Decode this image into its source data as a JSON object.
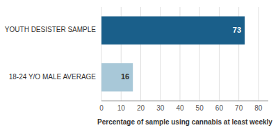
{
  "chart_data": {
    "type": "bar",
    "orientation": "horizontal",
    "categories": [
      "18-24 Y/O MALE AVERAGE",
      "YOUTH DESISTER SAMPLE"
    ],
    "values": [
      16,
      73
    ],
    "colors": [
      "#a8c8d8",
      "#1a5f8a"
    ],
    "xlabel": "Percentage of sample using cannabis at least weekly",
    "xlim": [
      0,
      85
    ],
    "xticks": [
      0,
      10,
      20,
      30,
      40,
      50,
      60,
      70,
      80
    ],
    "grid": true,
    "data_labels": true
  }
}
